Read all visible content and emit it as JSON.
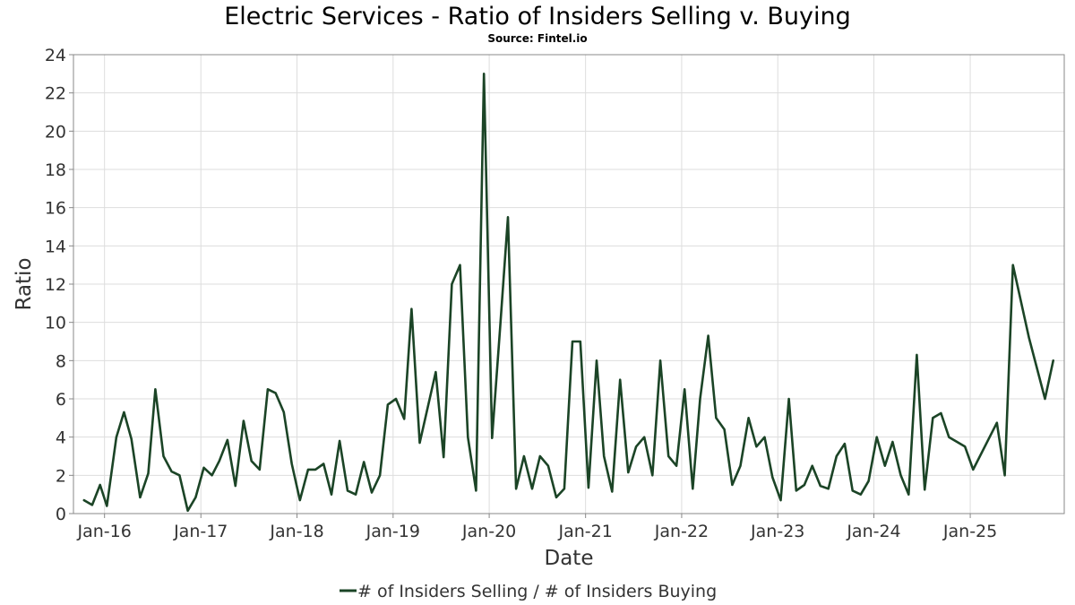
{
  "chart_data": {
    "type": "line",
    "title": "Electric Services - Ratio of Insiders Selling v. Buying",
    "subtitle": "Source: Fintel.io",
    "xlabel": "Date",
    "ylabel": "Ratio",
    "ylim": [
      0,
      24
    ],
    "yticks": [
      0,
      2,
      4,
      6,
      8,
      10,
      12,
      14,
      16,
      18,
      20,
      22,
      24
    ],
    "xlim": [
      "2015-09-05",
      "2025-12-24"
    ],
    "xticks": [
      {
        "label": "Jan-16",
        "date": "2016-01-01"
      },
      {
        "label": "Jan-17",
        "date": "2017-01-01"
      },
      {
        "label": "Jan-18",
        "date": "2018-01-01"
      },
      {
        "label": "Jan-19",
        "date": "2019-01-01"
      },
      {
        "label": "Jan-20",
        "date": "2020-01-01"
      },
      {
        "label": "Jan-21",
        "date": "2021-01-01"
      },
      {
        "label": "Jan-22",
        "date": "2022-01-01"
      },
      {
        "label": "Jan-23",
        "date": "2023-01-01"
      },
      {
        "label": "Jan-24",
        "date": "2024-01-01"
      },
      {
        "label": "Jan-25",
        "date": "2025-01-01"
      }
    ],
    "grid": true,
    "legend_position": "bottom",
    "series": [
      {
        "name": "# of Insiders Selling / # of Insiders Buying",
        "color": "#1b4426",
        "points": [
          [
            "2015-10-15",
            0.7
          ],
          [
            "2015-11-15",
            0.45
          ],
          [
            "2015-12-15",
            1.5
          ],
          [
            "2016-01-10",
            0.4
          ],
          [
            "2016-02-15",
            4.0
          ],
          [
            "2016-03-15",
            5.3
          ],
          [
            "2016-04-12",
            3.9
          ],
          [
            "2016-05-15",
            0.85
          ],
          [
            "2016-06-15",
            2.1
          ],
          [
            "2016-07-12",
            6.5
          ],
          [
            "2016-08-12",
            3.0
          ],
          [
            "2016-09-12",
            2.2
          ],
          [
            "2016-10-12",
            2.0
          ],
          [
            "2016-11-12",
            0.15
          ],
          [
            "2016-12-12",
            0.85
          ],
          [
            "2017-01-12",
            2.4
          ],
          [
            "2017-02-12",
            2.0
          ],
          [
            "2017-03-12",
            2.75
          ],
          [
            "2017-04-12",
            3.85
          ],
          [
            "2017-05-12",
            1.45
          ],
          [
            "2017-06-12",
            4.85
          ],
          [
            "2017-07-12",
            2.75
          ],
          [
            "2017-08-12",
            2.3
          ],
          [
            "2017-09-12",
            6.5
          ],
          [
            "2017-10-12",
            6.3
          ],
          [
            "2017-11-12",
            5.3
          ],
          [
            "2017-12-12",
            2.6
          ],
          [
            "2018-01-12",
            0.7
          ],
          [
            "2018-02-12",
            2.3
          ],
          [
            "2018-03-12",
            2.3
          ],
          [
            "2018-04-12",
            2.6
          ],
          [
            "2018-05-12",
            1.0
          ],
          [
            "2018-06-12",
            3.8
          ],
          [
            "2018-07-12",
            1.2
          ],
          [
            "2018-08-12",
            1.0
          ],
          [
            "2018-09-12",
            2.7
          ],
          [
            "2018-10-12",
            1.1
          ],
          [
            "2018-11-12",
            2.0
          ],
          [
            "2018-12-12",
            5.7
          ],
          [
            "2019-01-12",
            6.0
          ],
          [
            "2019-02-12",
            4.95
          ],
          [
            "2019-03-12",
            10.7
          ],
          [
            "2019-04-12",
            3.7
          ],
          [
            "2019-06-12",
            7.4
          ],
          [
            "2019-07-12",
            2.95
          ],
          [
            "2019-08-12",
            12.0
          ],
          [
            "2019-09-12",
            13.0
          ],
          [
            "2019-10-12",
            4.0
          ],
          [
            "2019-11-12",
            1.2
          ],
          [
            "2019-12-12",
            23.0
          ],
          [
            "2020-01-12",
            3.95
          ],
          [
            "2020-02-12",
            9.8
          ],
          [
            "2020-03-12",
            15.5
          ],
          [
            "2020-04-12",
            1.3
          ],
          [
            "2020-05-12",
            3.0
          ],
          [
            "2020-06-12",
            1.3
          ],
          [
            "2020-07-12",
            3.0
          ],
          [
            "2020-08-12",
            2.5
          ],
          [
            "2020-09-12",
            0.85
          ],
          [
            "2020-10-12",
            1.3
          ],
          [
            "2020-11-12",
            9.0
          ],
          [
            "2020-12-12",
            9.0
          ],
          [
            "2021-01-12",
            1.35
          ],
          [
            "2021-02-12",
            8.0
          ],
          [
            "2021-03-12",
            3.0
          ],
          [
            "2021-04-12",
            1.15
          ],
          [
            "2021-05-12",
            7.0
          ],
          [
            "2021-06-12",
            2.15
          ],
          [
            "2021-07-12",
            3.5
          ],
          [
            "2021-08-12",
            4.0
          ],
          [
            "2021-09-12",
            2.0
          ],
          [
            "2021-10-12",
            8.0
          ],
          [
            "2021-11-12",
            3.0
          ],
          [
            "2021-12-12",
            2.5
          ],
          [
            "2022-01-12",
            6.5
          ],
          [
            "2022-02-12",
            1.3
          ],
          [
            "2022-03-12",
            6.0
          ],
          [
            "2022-04-12",
            9.3
          ],
          [
            "2022-05-12",
            5.0
          ],
          [
            "2022-06-12",
            4.4
          ],
          [
            "2022-07-12",
            1.5
          ],
          [
            "2022-08-12",
            2.5
          ],
          [
            "2022-09-12",
            5.0
          ],
          [
            "2022-10-12",
            3.5
          ],
          [
            "2022-11-12",
            4.0
          ],
          [
            "2022-12-12",
            1.9
          ],
          [
            "2023-01-12",
            0.7
          ],
          [
            "2023-02-12",
            6.0
          ],
          [
            "2023-03-12",
            1.2
          ],
          [
            "2023-04-12",
            1.5
          ],
          [
            "2023-05-12",
            2.5
          ],
          [
            "2023-06-12",
            1.45
          ],
          [
            "2023-07-12",
            1.3
          ],
          [
            "2023-08-12",
            3.0
          ],
          [
            "2023-09-12",
            3.65
          ],
          [
            "2023-10-12",
            1.2
          ],
          [
            "2023-11-12",
            1.0
          ],
          [
            "2023-12-12",
            1.7
          ],
          [
            "2024-01-12",
            4.0
          ],
          [
            "2024-02-12",
            2.5
          ],
          [
            "2024-03-12",
            3.75
          ],
          [
            "2024-04-12",
            2.0
          ],
          [
            "2024-05-12",
            1.0
          ],
          [
            "2024-06-12",
            8.3
          ],
          [
            "2024-07-12",
            1.25
          ],
          [
            "2024-08-12",
            5.0
          ],
          [
            "2024-09-12",
            5.25
          ],
          [
            "2024-10-12",
            4.0
          ],
          [
            "2024-12-12",
            3.5
          ],
          [
            "2025-01-12",
            2.3
          ],
          [
            "2025-04-12",
            4.75
          ],
          [
            "2025-05-12",
            2.0
          ],
          [
            "2025-06-12",
            13.0
          ],
          [
            "2025-08-12",
            9.2
          ],
          [
            "2025-10-12",
            6.0
          ],
          [
            "2025-11-12",
            8.0
          ]
        ]
      }
    ]
  }
}
